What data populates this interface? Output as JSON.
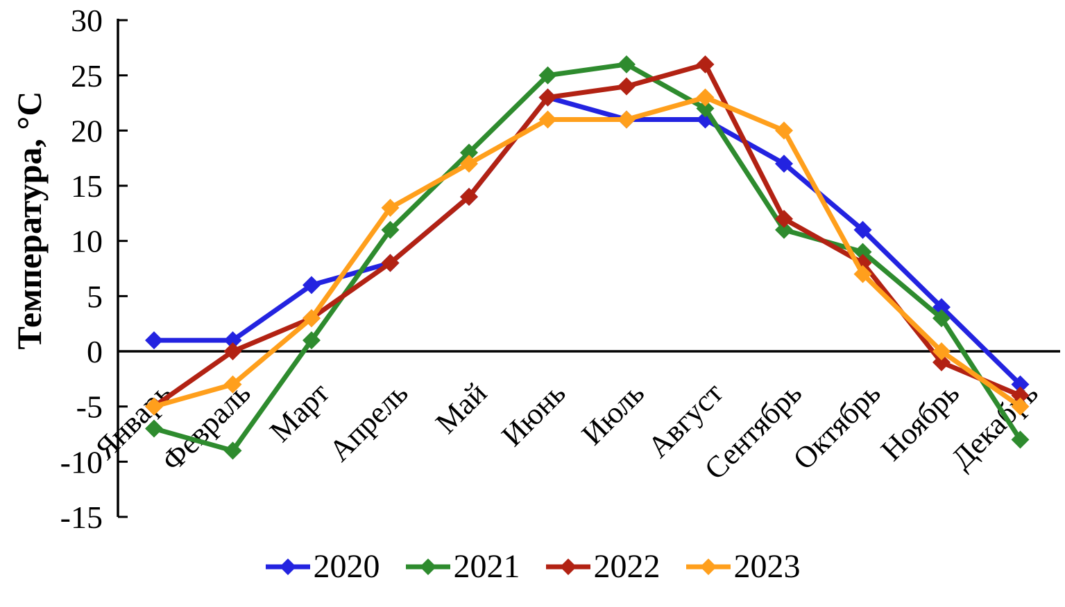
{
  "chart_data": {
    "type": "line",
    "title": "",
    "xlabel": "",
    "ylabel": "Температура, °C",
    "categories": [
      "Январь",
      "Февраль",
      "Март",
      "Апрель",
      "Май",
      "Июнь",
      "Июль",
      "Август",
      "Сентябрь",
      "Октябрь",
      "Ноябрь",
      "Декабрь"
    ],
    "series": [
      {
        "name": "2020",
        "color": "#2323E0",
        "values": [
          1,
          1,
          6,
          8,
          14,
          23,
          21,
          21,
          17,
          11,
          4,
          -3
        ]
      },
      {
        "name": "2021",
        "color": "#2E8B2E",
        "values": [
          -7,
          -9,
          1,
          11,
          18,
          25,
          26,
          22,
          11,
          9,
          3,
          -8
        ]
      },
      {
        "name": "2022",
        "color": "#B22213",
        "values": [
          -5,
          0,
          3,
          8,
          14,
          23,
          24,
          26,
          12,
          8,
          -1,
          -4
        ]
      },
      {
        "name": "2023",
        "color": "#FF9F1C",
        "values": [
          -5,
          -3,
          3,
          13,
          17,
          21,
          21,
          23,
          20,
          7,
          0,
          -5
        ]
      }
    ],
    "ylim": [
      -15,
      30
    ],
    "yticks": [
      30,
      25,
      20,
      15,
      10,
      5,
      0,
      -5,
      -10,
      -15
    ],
    "marker": "diamond",
    "grid": "none",
    "legend_position": "bottom",
    "axis_color": "#000000",
    "x_label_rotation_deg": -45
  }
}
